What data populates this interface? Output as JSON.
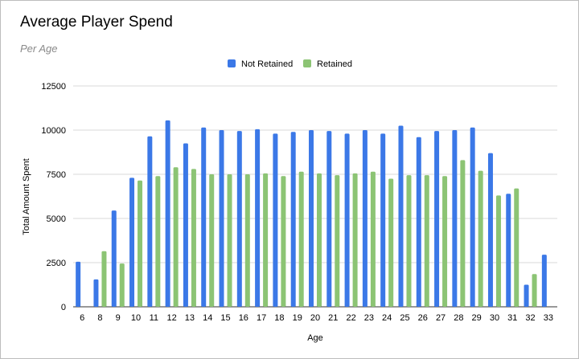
{
  "chart_data": {
    "type": "bar",
    "title": "Average Player Spend",
    "subtitle": "Per Age",
    "xlabel": "Age",
    "ylabel": "Total Amount Spent",
    "ylim": [
      0,
      12500
    ],
    "yticks": [
      "0",
      "2500",
      "5000",
      "7500",
      "10000",
      "12500"
    ],
    "grid": true,
    "legend_position": "top",
    "categories": [
      "6",
      "8",
      "9",
      "10",
      "11",
      "12",
      "13",
      "14",
      "15",
      "16",
      "17",
      "18",
      "19",
      "20",
      "21",
      "22",
      "23",
      "24",
      "25",
      "26",
      "27",
      "28",
      "29",
      "30",
      "31",
      "32",
      "33"
    ],
    "series": [
      {
        "name": "Not Retained",
        "color": "#3b78e7",
        "values": [
          2550,
          1550,
          5450,
          7300,
          9650,
          10550,
          9250,
          10150,
          10000,
          9950,
          10050,
          9800,
          9900,
          10000,
          9950,
          9800,
          10000,
          9800,
          10250,
          9600,
          9950,
          10000,
          10150,
          8700,
          6400,
          1250,
          2950
        ]
      },
      {
        "name": "Retained",
        "color": "#8cc474",
        "values": [
          null,
          3150,
          2450,
          7150,
          7400,
          7900,
          7800,
          7500,
          7500,
          7500,
          7550,
          7400,
          7650,
          7550,
          7450,
          7550,
          7650,
          7250,
          7450,
          7450,
          7400,
          8300,
          7700,
          6300,
          6700,
          1850,
          null
        ]
      }
    ]
  }
}
